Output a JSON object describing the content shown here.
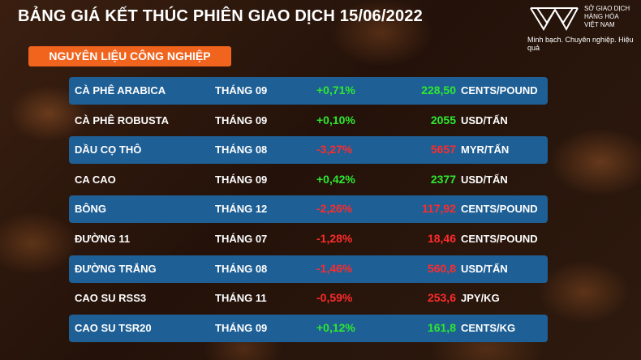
{
  "header": {
    "title": "BẢNG GIÁ KẾT THÚC PHIÊN GIAO DỊCH 15/06/2022",
    "org": [
      "SỞ GIAO DỊCH",
      "HÀNG HÓA",
      "VIỆT NAM"
    ],
    "tagline": "Minh bạch. Chuyên nghiệp. Hiệu quả"
  },
  "section": "NGUYÊN LIỆU CÔNG NGHIỆP",
  "table": {
    "rows": [
      {
        "name": "CÀ PHÊ ARABICA",
        "month": "THÁNG 09",
        "change": "+0,71%",
        "price": "228,50",
        "unit": "CENTS/POUND",
        "color": "#2ee82e"
      },
      {
        "name": "CÀ PHÊ ROBUSTA",
        "month": "THÁNG 09",
        "change": "+0,10%",
        "price": "2055",
        "unit": "USD/TẤN",
        "color": "#2ee82e"
      },
      {
        "name": "DẦU CỌ THÔ",
        "month": "THÁNG 08",
        "change": "-3,27%",
        "price": "5657",
        "unit": "MYR/TẤN",
        "color": "#ff2b2b"
      },
      {
        "name": "CA CAO",
        "month": "THÁNG 09",
        "change": "+0,42%",
        "price": "2377",
        "unit": "USD/TẤN",
        "color": "#2ee82e"
      },
      {
        "name": "BÔNG",
        "month": "THÁNG 12",
        "change": "-2,26%",
        "price": "117,92",
        "unit": "CENTS/POUND",
        "color": "#ff2b2b"
      },
      {
        "name": "ĐƯỜNG 11",
        "month": "THÁNG 07",
        "change": "-1,28%",
        "price": "18,46",
        "unit": "CENTS/POUND",
        "color": "#ff2b2b"
      },
      {
        "name": "ĐƯỜNG TRẮNG",
        "month": "THÁNG 08",
        "change": "-1,46%",
        "price": "560,8",
        "unit": "USD/TẤN",
        "color": "#ff2b2b"
      },
      {
        "name": "CAO SU RSS3",
        "month": "THÁNG 11",
        "change": "-0,59%",
        "price": "253,6",
        "unit": "JPY/KG",
        "color": "#ff2b2b"
      },
      {
        "name": "CAO SU TSR20",
        "month": "THÁNG 09",
        "change": "+0,12%",
        "price": "161,8",
        "unit": "CENTS/KG",
        "color": "#2ee82e"
      }
    ]
  }
}
